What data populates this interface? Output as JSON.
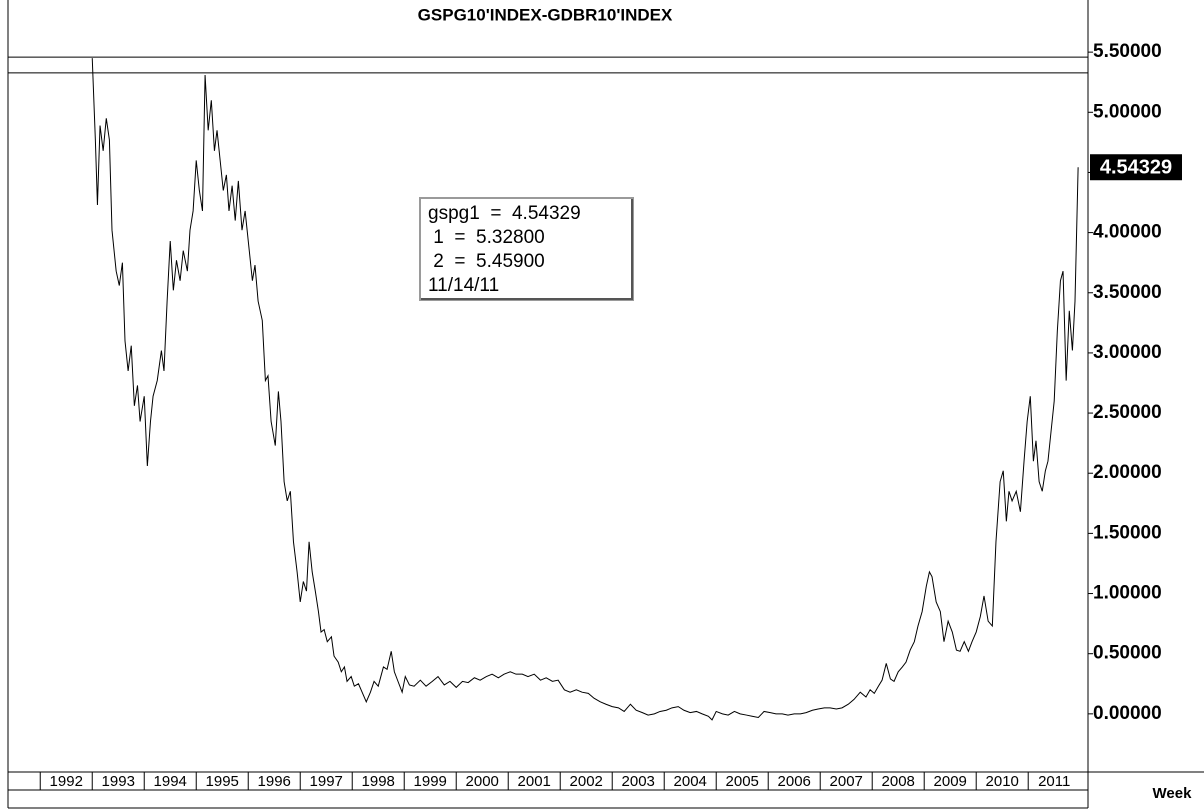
{
  "chart_data": {
    "type": "line",
    "title": "GSPG10'INDEX-GDBR10'INDEX",
    "x_unit_label": "Week",
    "info_box": [
      "gspg1  =  4.54329",
      " 1  =  5.32800",
      " 2  =  5.45900",
      "11/14/11"
    ],
    "hlines": [
      5.328,
      5.459
    ],
    "xlim": [
      1991.38,
      2012.15
    ],
    "xticks": [
      1992,
      1993,
      1994,
      1995,
      1996,
      1997,
      1998,
      1999,
      2000,
      2001,
      2002,
      2003,
      2004,
      2005,
      2006,
      2007,
      2008,
      2009,
      2010,
      2011
    ],
    "ylim": [
      -0.4833,
      5.9333
    ],
    "yticks": [
      {
        "value": 0,
        "label": "0.00000"
      },
      {
        "value": 0.5,
        "label": "0.50000"
      },
      {
        "value": 1,
        "label": "1.00000"
      },
      {
        "value": 1.5,
        "label": "1.50000"
      },
      {
        "value": 2,
        "label": "2.00000"
      },
      {
        "value": 2.5,
        "label": "2.50000"
      },
      {
        "value": 3,
        "label": "3.00000"
      },
      {
        "value": 3.5,
        "label": "3.50000"
      },
      {
        "value": 4,
        "label": "4.00000"
      },
      {
        "value": 4.5,
        "label": "4.50000"
      },
      {
        "value": 5,
        "label": "5.00000"
      },
      {
        "value": 5.5,
        "label": "5.50000"
      }
    ],
    "x": [
      1993.0,
      1993.06,
      1993.1,
      1993.15,
      1993.21,
      1993.27,
      1993.33,
      1993.38,
      1993.46,
      1993.52,
      1993.58,
      1993.63,
      1993.69,
      1993.75,
      1993.81,
      1993.87,
      1993.92,
      1994.0,
      1994.06,
      1994.12,
      1994.17,
      1994.25,
      1994.33,
      1994.38,
      1994.44,
      1994.5,
      1994.56,
      1994.62,
      1994.69,
      1994.75,
      1994.83,
      1994.88,
      1994.94,
      1995.0,
      1995.06,
      1995.12,
      1995.17,
      1995.23,
      1995.29,
      1995.35,
      1995.4,
      1995.46,
      1995.52,
      1995.58,
      1995.63,
      1995.69,
      1995.75,
      1995.81,
      1995.88,
      1995.94,
      1996.02,
      1996.08,
      1996.13,
      1996.19,
      1996.27,
      1996.33,
      1996.38,
      1996.44,
      1996.52,
      1996.58,
      1996.63,
      1996.69,
      1996.75,
      1996.81,
      1996.87,
      1996.94,
      1997.0,
      1997.06,
      1997.12,
      1997.17,
      1997.23,
      1997.29,
      1997.35,
      1997.4,
      1997.46,
      1997.52,
      1997.6,
      1997.65,
      1997.73,
      1997.79,
      1997.85,
      1997.9,
      1997.98,
      1998.04,
      1998.12,
      1998.19,
      1998.27,
      1998.35,
      1998.42,
      1998.5,
      1998.6,
      1998.67,
      1998.75,
      1998.81,
      1998.88,
      1998.96,
      1999.02,
      1999.1,
      1999.19,
      1999.31,
      1999.42,
      1999.54,
      1999.65,
      1999.77,
      1999.88,
      2000.0,
      2000.12,
      2000.23,
      2000.35,
      2000.46,
      2000.58,
      2000.69,
      2000.81,
      2000.92,
      2001.04,
      2001.15,
      2001.27,
      2001.38,
      2001.5,
      2001.62,
      2001.73,
      2001.85,
      2001.96,
      2002.08,
      2002.19,
      2002.31,
      2002.42,
      2002.54,
      2002.65,
      2002.77,
      2002.88,
      2003.0,
      2003.12,
      2003.23,
      2003.35,
      2003.46,
      2003.58,
      2003.69,
      2003.81,
      2003.92,
      2004.04,
      2004.15,
      2004.27,
      2004.38,
      2004.5,
      2004.62,
      2004.73,
      2004.85,
      2004.92,
      2005.0,
      2005.12,
      2005.23,
      2005.35,
      2005.46,
      2005.58,
      2005.69,
      2005.81,
      2005.92,
      2006.04,
      2006.15,
      2006.27,
      2006.38,
      2006.5,
      2006.62,
      2006.73,
      2006.85,
      2006.96,
      2007.08,
      2007.19,
      2007.31,
      2007.42,
      2007.54,
      2007.65,
      2007.77,
      2007.88,
      2007.96,
      2008.04,
      2008.12,
      2008.19,
      2008.27,
      2008.35,
      2008.42,
      2008.5,
      2008.58,
      2008.65,
      2008.73,
      2008.81,
      2008.88,
      2008.96,
      2009.04,
      2009.1,
      2009.15,
      2009.23,
      2009.31,
      2009.38,
      2009.46,
      2009.54,
      2009.62,
      2009.69,
      2009.77,
      2009.85,
      2009.92,
      2010.0,
      2010.08,
      2010.15,
      2010.23,
      2010.31,
      2010.38,
      2010.46,
      2010.52,
      2010.58,
      2010.63,
      2010.69,
      2010.77,
      2010.85,
      2010.92,
      2010.98,
      2011.04,
      2011.1,
      2011.15,
      2011.21,
      2011.27,
      2011.33,
      2011.38,
      2011.44,
      2011.5,
      2011.56,
      2011.62,
      2011.67,
      2011.73,
      2011.79,
      2011.85,
      2011.9,
      2011.96
    ],
    "series": [
      {
        "color": "#000000",
        "values": [
          5.45,
          4.77,
          4.23,
          4.89,
          4.68,
          4.95,
          4.77,
          4.02,
          3.68,
          3.56,
          3.75,
          3.1,
          2.85,
          3.06,
          2.56,
          2.73,
          2.43,
          2.64,
          2.06,
          2.43,
          2.64,
          2.77,
          3.02,
          2.85,
          3.43,
          3.93,
          3.52,
          3.77,
          3.6,
          3.85,
          3.68,
          4.02,
          4.18,
          4.6,
          4.35,
          4.18,
          5.31,
          4.85,
          5.1,
          4.68,
          4.85,
          4.6,
          4.35,
          4.48,
          4.18,
          4.39,
          4.1,
          4.43,
          4.02,
          4.18,
          3.85,
          3.6,
          3.73,
          3.43,
          3.27,
          2.77,
          2.81,
          2.43,
          2.23,
          2.68,
          2.43,
          1.93,
          1.77,
          1.85,
          1.43,
          1.18,
          0.93,
          1.1,
          1.02,
          1.43,
          1.18,
          1.02,
          0.85,
          0.68,
          0.7,
          0.6,
          0.64,
          0.48,
          0.43,
          0.35,
          0.39,
          0.27,
          0.31,
          0.23,
          0.25,
          0.18,
          0.1,
          0.18,
          0.27,
          0.23,
          0.39,
          0.37,
          0.52,
          0.35,
          0.27,
          0.18,
          0.31,
          0.24,
          0.23,
          0.28,
          0.23,
          0.27,
          0.31,
          0.24,
          0.27,
          0.22,
          0.27,
          0.26,
          0.3,
          0.28,
          0.31,
          0.33,
          0.3,
          0.33,
          0.35,
          0.33,
          0.33,
          0.31,
          0.33,
          0.28,
          0.3,
          0.27,
          0.28,
          0.2,
          0.18,
          0.2,
          0.18,
          0.17,
          0.13,
          0.1,
          0.08,
          0.06,
          0.05,
          0.02,
          0.08,
          0.03,
          0.01,
          -0.01,
          0.0,
          0.02,
          0.03,
          0.05,
          0.06,
          0.03,
          0.01,
          0.02,
          0.0,
          -0.02,
          -0.05,
          0.02,
          0.0,
          -0.01,
          0.02,
          0.0,
          -0.01,
          -0.02,
          -0.03,
          0.02,
          0.01,
          0.0,
          0.0,
          -0.01,
          0.0,
          0.0,
          0.01,
          0.03,
          0.04,
          0.05,
          0.05,
          0.04,
          0.05,
          0.08,
          0.12,
          0.18,
          0.14,
          0.2,
          0.17,
          0.23,
          0.28,
          0.42,
          0.29,
          0.27,
          0.35,
          0.39,
          0.43,
          0.53,
          0.6,
          0.73,
          0.85,
          1.06,
          1.18,
          1.14,
          0.93,
          0.85,
          0.6,
          0.77,
          0.68,
          0.53,
          0.52,
          0.6,
          0.52,
          0.6,
          0.68,
          0.81,
          0.98,
          0.77,
          0.73,
          1.43,
          1.93,
          2.02,
          1.6,
          1.85,
          1.77,
          1.85,
          1.68,
          2.1,
          2.43,
          2.64,
          2.1,
          2.27,
          1.93,
          1.85,
          2.02,
          2.1,
          2.35,
          2.6,
          3.18,
          3.6,
          3.68,
          2.77,
          3.35,
          3.02,
          3.43,
          4.54329
        ],
        "value_labels": {
          "index": 233,
          "label": "4.54329"
        }
      }
    ]
  }
}
